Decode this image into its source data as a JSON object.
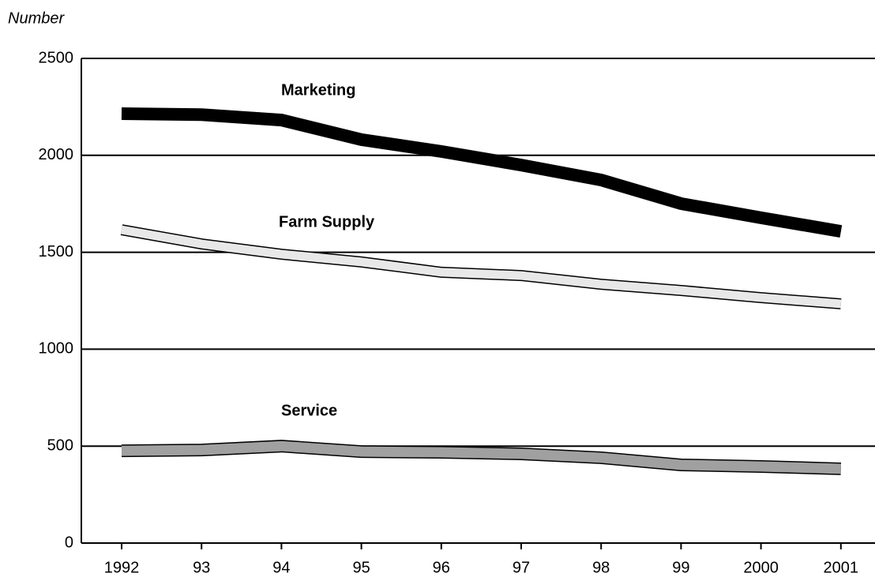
{
  "chart_data": {
    "type": "line",
    "y_label": "Number",
    "categories": [
      "1992",
      "93",
      "94",
      "95",
      "96",
      "97",
      "98",
      "99",
      "2000",
      "2001"
    ],
    "series": [
      {
        "name": "Marketing",
        "color": "#000000",
        "values": [
          2215,
          2210,
          2182,
          2081,
          2020,
          1950,
          1873,
          1751,
          1678,
          1608
        ]
      },
      {
        "name": "Farm Supply",
        "color": "#e8e8e8",
        "values": [
          1616,
          1543,
          1490,
          1450,
          1397,
          1380,
          1335,
          1303,
          1266,
          1234
        ]
      },
      {
        "name": "Service",
        "color": "#a0a0a0",
        "values": [
          476,
          480,
          500,
          472,
          468,
          460,
          440,
          403,
          395,
          383
        ]
      }
    ],
    "ylim": [
      0,
      2500
    ],
    "yticks": [
      0,
      500,
      1000,
      1500,
      2000,
      2500
    ],
    "grid": true
  }
}
